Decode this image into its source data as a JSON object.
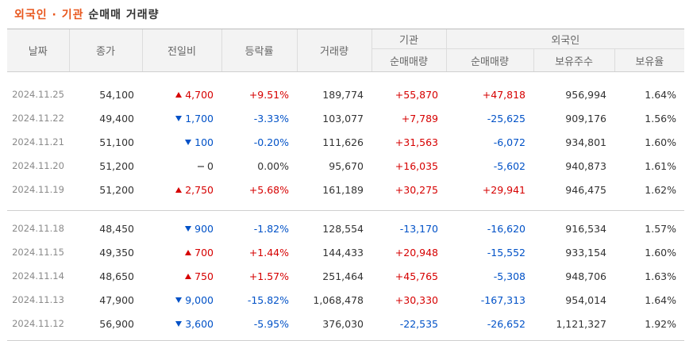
{
  "title": {
    "accent": "외국인 · 기관",
    "rest": "순매매 거래량"
  },
  "headers": {
    "date": "날짜",
    "close": "종가",
    "change": "전일비",
    "rate": "등락률",
    "volume": "거래량",
    "institution": "기관",
    "institution_net": "순매매량",
    "foreign": "외국인",
    "foreign_net": "순매매량",
    "holdings": "보유주수",
    "holding_ratio": "보유율"
  },
  "groups": [
    {
      "rows": [
        {
          "date": "2024.11.25",
          "close": "54,100",
          "dir": "up",
          "change": "4,700",
          "rate": "+9.51%",
          "volume": "189,774",
          "inst": "+55,870",
          "foreign": "+47,818",
          "holdings": "956,994",
          "ratio": "1.64%"
        },
        {
          "date": "2024.11.22",
          "close": "49,400",
          "dir": "down",
          "change": "1,700",
          "rate": "-3.33%",
          "volume": "103,077",
          "inst": "+7,789",
          "foreign": "-25,625",
          "holdings": "909,176",
          "ratio": "1.56%"
        },
        {
          "date": "2024.11.21",
          "close": "51,100",
          "dir": "down",
          "change": "100",
          "rate": "-0.20%",
          "volume": "111,626",
          "inst": "+31,563",
          "foreign": "-6,072",
          "holdings": "934,801",
          "ratio": "1.60%"
        },
        {
          "date": "2024.11.20",
          "close": "51,200",
          "dir": "flat",
          "change": "0",
          "rate": "0.00%",
          "volume": "95,670",
          "inst": "+16,035",
          "foreign": "-5,602",
          "holdings": "940,873",
          "ratio": "1.61%"
        },
        {
          "date": "2024.11.19",
          "close": "51,200",
          "dir": "up",
          "change": "2,750",
          "rate": "+5.68%",
          "volume": "161,189",
          "inst": "+30,275",
          "foreign": "+29,941",
          "holdings": "946,475",
          "ratio": "1.62%"
        }
      ]
    },
    {
      "rows": [
        {
          "date": "2024.11.18",
          "close": "48,450",
          "dir": "down",
          "change": "900",
          "rate": "-1.82%",
          "volume": "128,554",
          "inst": "-13,170",
          "foreign": "-16,620",
          "holdings": "916,534",
          "ratio": "1.57%"
        },
        {
          "date": "2024.11.15",
          "close": "49,350",
          "dir": "up",
          "change": "700",
          "rate": "+1.44%",
          "volume": "144,433",
          "inst": "+20,948",
          "foreign": "-15,552",
          "holdings": "933,154",
          "ratio": "1.60%"
        },
        {
          "date": "2024.11.14",
          "close": "48,650",
          "dir": "up",
          "change": "750",
          "rate": "+1.57%",
          "volume": "251,464",
          "inst": "+45,765",
          "foreign": "-5,308",
          "holdings": "948,706",
          "ratio": "1.63%"
        },
        {
          "date": "2024.11.13",
          "close": "47,900",
          "dir": "down",
          "change": "9,000",
          "rate": "-15.82%",
          "volume": "1,068,478",
          "inst": "+30,330",
          "foreign": "-167,313",
          "holdings": "954,014",
          "ratio": "1.64%"
        },
        {
          "date": "2024.11.12",
          "close": "56,900",
          "dir": "down",
          "change": "3,600",
          "rate": "-5.95%",
          "volume": "376,030",
          "inst": "-22,535",
          "foreign": "-26,652",
          "holdings": "1,121,327",
          "ratio": "1.92%"
        }
      ]
    }
  ],
  "colors": {
    "up": "#d60000",
    "down": "#0051c7",
    "title_accent": "#e8561c",
    "header_bg": "#f3f3f3"
  }
}
